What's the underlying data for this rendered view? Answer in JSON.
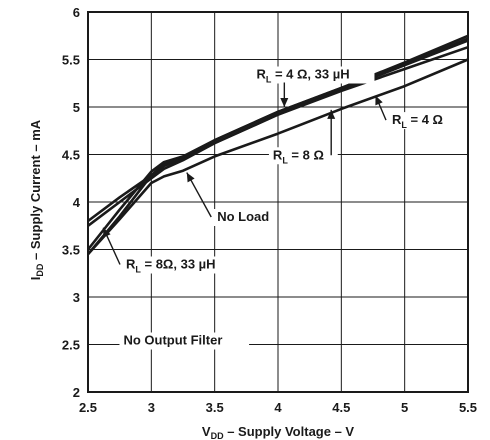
{
  "chart_data": {
    "type": "line",
    "xlabel": {
      "prefix": "V",
      "sub": "DD",
      "suffix": " – Supply Voltage – V"
    },
    "ylabel": {
      "prefix": "I",
      "sub": "DD",
      "suffix": " – Supply Current – mA"
    },
    "xlim": [
      2.5,
      5.5
    ],
    "ylim": [
      2,
      6
    ],
    "xticks": [
      "2.5",
      "3",
      "3.5",
      "4",
      "4.5",
      "5",
      "5.5"
    ],
    "yticks": [
      "2",
      "2.5",
      "3",
      "3.5",
      "4",
      "4.5",
      "5",
      "5.5",
      "6"
    ],
    "grid": true,
    "series": [
      {
        "name": "RL = 4 Ω, 33 µH",
        "x": [
          2.5,
          2.75,
          3.0,
          3.1,
          3.25,
          3.5,
          4.0,
          4.5,
          5.0,
          5.5
        ],
        "y": [
          3.8,
          4.05,
          4.28,
          4.38,
          4.46,
          4.65,
          4.95,
          5.2,
          5.47,
          5.75
        ]
      },
      {
        "name": "RL = 4 Ω",
        "x": [
          2.5,
          2.75,
          3.0,
          3.1,
          3.25,
          3.5,
          4.0,
          4.5,
          5.0,
          5.5
        ],
        "y": [
          3.75,
          4.0,
          4.25,
          4.35,
          4.44,
          4.62,
          4.92,
          5.18,
          5.44,
          5.7
        ]
      },
      {
        "name": "RL = 8 Ω",
        "x": [
          2.5,
          2.75,
          3.0,
          3.1,
          3.25,
          3.5,
          4.0,
          4.5,
          5.0,
          5.5
        ],
        "y": [
          3.45,
          3.85,
          4.28,
          4.4,
          4.45,
          4.62,
          4.92,
          5.17,
          5.4,
          5.63
        ]
      },
      {
        "name": "RL = 8Ω, 33 µH",
        "x": [
          2.5,
          2.75,
          3.0,
          3.1,
          3.25,
          3.5,
          4.0,
          4.5,
          5.0,
          5.5
        ],
        "y": [
          3.5,
          3.92,
          4.32,
          4.42,
          4.48,
          4.65,
          4.95,
          5.2,
          5.45,
          5.72
        ]
      },
      {
        "name": "No Load",
        "x": [
          2.5,
          2.75,
          3.0,
          3.1,
          3.25,
          3.5,
          4.0,
          4.5,
          5.0,
          5.5
        ],
        "y": [
          3.45,
          3.82,
          4.2,
          4.27,
          4.33,
          4.48,
          4.72,
          4.98,
          5.22,
          5.5
        ]
      }
    ],
    "annotations": [
      {
        "label": "R",
        "sub": "L",
        "rest": " = 4 Ω, 33 µH",
        "x": 3.83,
        "y": 5.3,
        "ax": 4.05,
        "ay": 5.0
      },
      {
        "label": "R",
        "sub": "L",
        "rest": " = 4 Ω",
        "x": 4.9,
        "y": 4.82,
        "ax": 4.77,
        "ay": 5.12
      },
      {
        "label": "R",
        "sub": "L",
        "rest": " = 8 Ω",
        "x": 3.96,
        "y": 4.45,
        "ax": 4.42,
        "ay": 4.97
      },
      {
        "label": "No Load",
        "sub": "",
        "rest": "",
        "x": 3.52,
        "y": 3.8,
        "ax": 3.28,
        "ay": 4.31
      },
      {
        "label": "R",
        "sub": "L",
        "rest": " = 8Ω, 33 µH",
        "x": 2.8,
        "y": 3.3,
        "ax": 2.62,
        "ay": 3.73
      },
      {
        "label": "No Output Filter",
        "sub": "",
        "rest": "",
        "x": 2.78,
        "y": 2.5,
        "ax": null,
        "ay": null
      }
    ]
  }
}
